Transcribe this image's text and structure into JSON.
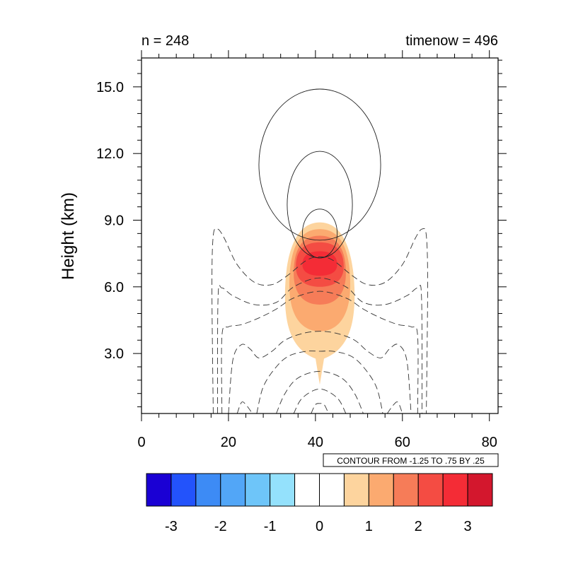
{
  "chart_data": {
    "type": "heatmap",
    "left_title": "n = 248",
    "right_title": "timenow = 496",
    "xlabel": "",
    "ylabel": "Height (km)",
    "xlim": [
      0,
      82
    ],
    "ylim": [
      0.3,
      16.3
    ],
    "x_ticks": [
      0,
      20,
      40,
      60,
      80
    ],
    "x_tick_labels": [
      "0",
      "20",
      "40",
      "60",
      "80"
    ],
    "y_ticks": [
      3.0,
      6.0,
      9.0,
      12.0,
      15.0
    ],
    "y_tick_labels": [
      "3.0",
      "6.0",
      "9.0",
      "12.0",
      "15.0"
    ],
    "contour_info": "CONTOUR FROM -1.25 TO .75 BY .25",
    "colorbar": {
      "colors": [
        "#1a00d4",
        "#2353fb",
        "#3d8bf5",
        "#52a6f7",
        "#6ec5f9",
        "#94e1fc",
        "#ffffff",
        "#ffffff",
        "#fdd49e",
        "#fbaa70",
        "#f67c58",
        "#f44c43",
        "#f42c36",
        "#d3172d"
      ],
      "tick_labels": [
        "-3",
        "-2",
        "-1",
        "0",
        "1",
        "2",
        "3"
      ]
    },
    "filled_field": {
      "center_x": 41,
      "levels": [
        {
          "value": 0.5,
          "color": "#fdd49e",
          "xmin": 33,
          "xmax": 49,
          "ymin": 1.6,
          "ymax": 8.9
        },
        {
          "value": 1.0,
          "color": "#fbaa70",
          "xmin": 34,
          "xmax": 48,
          "ymin": 4.0,
          "ymax": 8.6
        },
        {
          "value": 1.5,
          "color": "#f67c58",
          "xmin": 35,
          "xmax": 47,
          "ymin": 5.2,
          "ymax": 8.3
        },
        {
          "value": 2.0,
          "color": "#f44c43",
          "xmin": 35.5,
          "xmax": 46.5,
          "ymin": 6.0,
          "ymax": 8.0
        },
        {
          "value": 2.5,
          "color": "#f42c36",
          "xmin": 37,
          "xmax": 45,
          "ymin": 6.5,
          "ymax": 7.6
        }
      ]
    },
    "line_contours": {
      "positive": [
        {
          "cx": 41,
          "cy": 11.5,
          "rx": 14,
          "ry": 3.4
        },
        {
          "cx": 41,
          "cy": 9.7,
          "rx": 7.5,
          "ry": 2.4
        },
        {
          "cx": 41,
          "cy": 8.4,
          "rx": 4,
          "ry": 1.1
        }
      ],
      "negative_curves": [
        [
          [
            16.5,
            0.3
          ],
          [
            16.2,
            6.0
          ],
          [
            16.5,
            8.3
          ],
          [
            17.5,
            8.6
          ],
          [
            19,
            8.2
          ],
          [
            22,
            7.0
          ],
          [
            26,
            6.2
          ],
          [
            30,
            6.1
          ],
          [
            33.5,
            6.5
          ],
          [
            38,
            7.2
          ],
          [
            41,
            7.35
          ],
          [
            44,
            7.2
          ],
          [
            48.5,
            6.5
          ],
          [
            52,
            6.1
          ],
          [
            56,
            6.2
          ],
          [
            60,
            7.0
          ],
          [
            63,
            8.2
          ],
          [
            64.5,
            8.6
          ],
          [
            65.5,
            8.3
          ],
          [
            65.8,
            6.0
          ],
          [
            65.5,
            0.3
          ]
        ],
        [
          [
            17.5,
            0.3
          ],
          [
            17.6,
            5.5
          ],
          [
            18.5,
            5.95
          ],
          [
            21,
            5.6
          ],
          [
            26,
            5.2
          ],
          [
            31,
            5.3
          ],
          [
            35,
            6.0
          ],
          [
            41,
            6.4
          ],
          [
            47,
            6.0
          ],
          [
            51,
            5.3
          ],
          [
            56,
            5.2
          ],
          [
            61,
            5.6
          ],
          [
            63.5,
            5.95
          ],
          [
            64.4,
            5.5
          ],
          [
            64.5,
            0.3
          ]
        ],
        [
          [
            18.5,
            0.3
          ],
          [
            18.5,
            3.8
          ],
          [
            20,
            4.2
          ],
          [
            23,
            4.3
          ],
          [
            27,
            4.6
          ],
          [
            31,
            5.0
          ],
          [
            35,
            5.5
          ],
          [
            41,
            5.8
          ],
          [
            47,
            5.5
          ],
          [
            51,
            5.0
          ],
          [
            55,
            4.6
          ],
          [
            59,
            4.3
          ],
          [
            62,
            4.2
          ],
          [
            63.5,
            3.8
          ],
          [
            63.5,
            0.3
          ]
        ],
        [
          [
            20,
            0.3
          ],
          [
            21,
            2.7
          ],
          [
            23,
            3.4
          ],
          [
            25,
            3.2
          ],
          [
            27,
            2.8
          ],
          [
            30,
            3.1
          ],
          [
            33,
            3.6
          ],
          [
            37,
            3.9
          ],
          [
            41,
            4.0
          ],
          [
            45,
            3.9
          ],
          [
            49,
            3.6
          ],
          [
            52,
            3.1
          ],
          [
            55,
            2.8
          ],
          [
            57,
            3.2
          ],
          [
            59,
            3.4
          ],
          [
            61,
            2.7
          ],
          [
            62,
            0.3
          ]
        ],
        [
          [
            22,
            0.3
          ],
          [
            23,
            0.8
          ],
          [
            24,
            0.7
          ],
          [
            25.5,
            0.3
          ]
        ],
        [
          [
            56.5,
            0.3
          ],
          [
            58,
            0.7
          ],
          [
            59,
            0.8
          ],
          [
            60,
            0.3
          ]
        ],
        [
          [
            26.5,
            0.3
          ],
          [
            28,
            1.5
          ],
          [
            31,
            2.4
          ],
          [
            34,
            2.9
          ],
          [
            38,
            3.1
          ],
          [
            41,
            3.1
          ],
          [
            44,
            3.1
          ],
          [
            48,
            2.9
          ],
          [
            51,
            2.4
          ],
          [
            54,
            1.5
          ],
          [
            55.5,
            0.3
          ]
        ],
        [
          [
            31,
            0.3
          ],
          [
            33,
            1.2
          ],
          [
            36,
            1.9
          ],
          [
            41,
            2.2
          ],
          [
            46,
            1.9
          ],
          [
            49,
            1.2
          ],
          [
            51,
            0.3
          ]
        ],
        [
          [
            35,
            0.3
          ],
          [
            37,
            1.0
          ],
          [
            41,
            1.4
          ],
          [
            45,
            1.0
          ],
          [
            47,
            0.3
          ]
        ],
        [
          [
            39,
            0.3
          ],
          [
            40,
            0.7
          ],
          [
            41,
            0.75
          ],
          [
            42,
            0.7
          ],
          [
            43,
            0.3
          ]
        ]
      ]
    }
  }
}
